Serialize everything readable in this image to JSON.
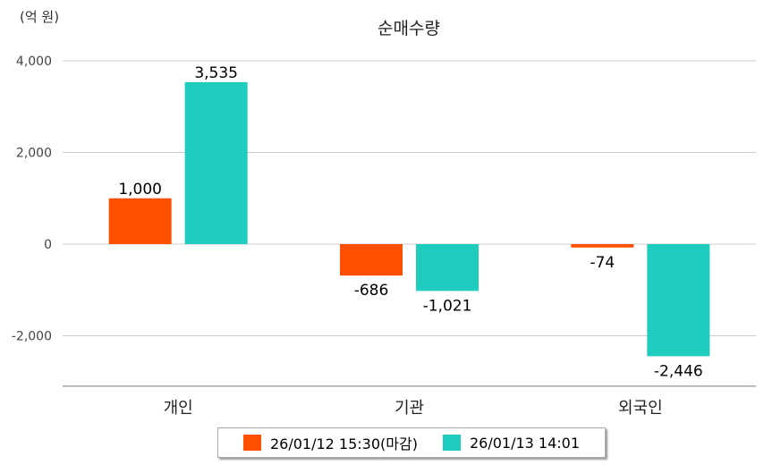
{
  "chart_data": {
    "type": "bar",
    "title": "순매수량",
    "unit_label": "(억 원)",
    "categories": [
      "개인",
      "기관",
      "외국인"
    ],
    "series": [
      {
        "name": "26/01/12 15:30(마감)",
        "color": "#ff5000",
        "values": [
          1000,
          -686,
          -74
        ],
        "labels": [
          "1,000",
          "-686",
          "-74"
        ]
      },
      {
        "name": "26/01/13 14:01",
        "color": "#1ecdbd",
        "values": [
          3535,
          -1021,
          -2446
        ],
        "labels": [
          "3,535",
          "-1,021",
          "-2,446"
        ]
      }
    ],
    "yticks": [
      4000,
      2000,
      0,
      -2000
    ],
    "ytick_labels": [
      "4,000",
      "2,000",
      "0",
      "-2,000"
    ],
    "ylim": [
      -3100,
      4000
    ],
    "grid": true,
    "legend_position": "bottom"
  }
}
